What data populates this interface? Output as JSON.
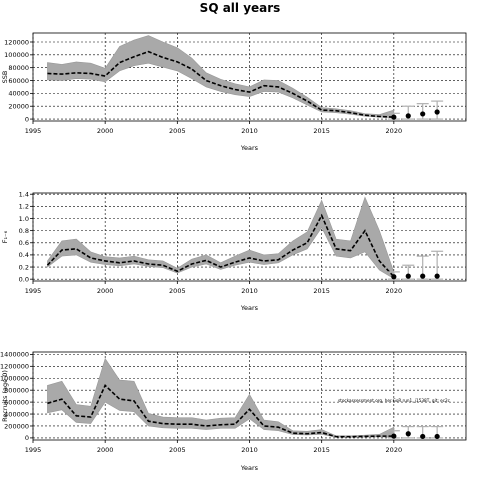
{
  "title": "SQ all years",
  "chart_data": [
    {
      "type": "line",
      "ylabel": "SSB",
      "xlabel": "Years",
      "xlim": [
        1995,
        2025
      ],
      "ylim": [
        -3000,
        134000
      ],
      "xticks": [
        1995,
        2000,
        2005,
        2010,
        2015,
        2020
      ],
      "yticks": [
        0,
        20000,
        40000,
        60000,
        80000,
        100000,
        120000
      ],
      "ytick_labels": [
        "0",
        "20000",
        "40000",
        "60000",
        "80000",
        "100000",
        "120000"
      ],
      "grid": true,
      "annotation": "",
      "x": [
        1996,
        1997,
        1998,
        1999,
        2000,
        2001,
        2002,
        2003,
        2004,
        2005,
        2006,
        2007,
        2008,
        2009,
        2010,
        2011,
        2012,
        2013,
        2014,
        2015,
        2016,
        2017,
        2018,
        2019,
        2020
      ],
      "estimate": [
        71000,
        70000,
        72000,
        71000,
        67000,
        88000,
        97000,
        105000,
        96000,
        89000,
        78000,
        60000,
        52000,
        46000,
        42000,
        52000,
        50000,
        40000,
        28000,
        14000,
        13000,
        10000,
        6000,
        4000,
        3000
      ],
      "lower": [
        61000,
        60000,
        63000,
        62000,
        58000,
        75000,
        83000,
        87000,
        81000,
        75000,
        63000,
        50000,
        43000,
        38000,
        35000,
        43000,
        42000,
        33000,
        22000,
        11000,
        10000,
        7500,
        4500,
        3000,
        2000
      ],
      "upper": [
        88000,
        85000,
        89000,
        87000,
        79000,
        113000,
        123000,
        130000,
        120000,
        111000,
        95000,
        72000,
        62000,
        55000,
        50000,
        61000,
        60000,
        48000,
        34000,
        18000,
        16000,
        13000,
        8500,
        7000,
        14000
      ],
      "forecast": [
        {
          "x": 2020,
          "value": 3000,
          "low": 0,
          "high": 9000
        },
        {
          "x": 2021,
          "value": 5000,
          "low": 0,
          "high": 20000
        },
        {
          "x": 2022,
          "value": 8000,
          "low": 0,
          "high": 24000
        },
        {
          "x": 2023,
          "value": 11000,
          "low": 0,
          "high": 28000
        }
      ]
    },
    {
      "type": "line",
      "ylabel": "F₁₋₆",
      "xlabel": "Years",
      "xlim": [
        1995,
        2025
      ],
      "ylim": [
        -0.03,
        1.42
      ],
      "xticks": [
        1995,
        2000,
        2005,
        2010,
        2015,
        2020
      ],
      "yticks": [
        0,
        0.2,
        0.4,
        0.6,
        0.8,
        1.0,
        1.2,
        1.4
      ],
      "ytick_labels": [
        "0.0",
        "0.2",
        "0.4",
        "0.6",
        "0.8",
        "1.0",
        "1.2",
        "1.4"
      ],
      "grid": true,
      "annotation": "",
      "x": [
        1996,
        1997,
        1998,
        1999,
        2000,
        2001,
        2002,
        2003,
        2004,
        2005,
        2006,
        2007,
        2008,
        2009,
        2010,
        2011,
        2012,
        2013,
        2014,
        2015,
        2016,
        2017,
        2018,
        2019,
        2020
      ],
      "estimate": [
        0.23,
        0.48,
        0.5,
        0.35,
        0.3,
        0.27,
        0.3,
        0.25,
        0.23,
        0.13,
        0.25,
        0.31,
        0.2,
        0.28,
        0.35,
        0.3,
        0.32,
        0.48,
        0.6,
        1.05,
        0.5,
        0.47,
        0.8,
        0.3,
        0.04
      ],
      "lower": [
        0.2,
        0.38,
        0.4,
        0.28,
        0.24,
        0.22,
        0.25,
        0.21,
        0.19,
        0.1,
        0.2,
        0.25,
        0.16,
        0.23,
        0.28,
        0.24,
        0.27,
        0.4,
        0.5,
        0.85,
        0.38,
        0.35,
        0.45,
        0.15,
        0.01
      ],
      "upper": [
        0.3,
        0.63,
        0.66,
        0.45,
        0.37,
        0.35,
        0.38,
        0.32,
        0.3,
        0.18,
        0.33,
        0.4,
        0.27,
        0.38,
        0.48,
        0.4,
        0.42,
        0.63,
        0.78,
        1.3,
        0.66,
        0.63,
        1.35,
        0.8,
        0.12
      ],
      "forecast": [
        {
          "x": 2020,
          "value": 0.04,
          "low": 0.0,
          "high": 0.12
        },
        {
          "x": 2021,
          "value": 0.05,
          "low": 0.0,
          "high": 0.23
        },
        {
          "x": 2022,
          "value": 0.05,
          "low": 0.0,
          "high": 0.38
        },
        {
          "x": 2023,
          "value": 0.05,
          "low": 0.0,
          "high": 0.46
        }
      ]
    },
    {
      "type": "line",
      "ylabel": "Recruits (age 0)",
      "xlabel": "Years",
      "xlim": [
        1995,
        2025
      ],
      "ylim": [
        -35000,
        1440000
      ],
      "xticks": [
        1995,
        2000,
        2005,
        2010,
        2015,
        2020
      ],
      "yticks": [
        0,
        200000,
        400000,
        600000,
        800000,
        1000000,
        1200000,
        1400000
      ],
      "ytick_labels": [
        "0",
        "200000",
        "400000",
        "600000",
        "800000",
        "1000000",
        "1200000",
        "1400000"
      ],
      "grid": true,
      "annotation": "stockassessment.org, her.GoR.run1, j1538T, git: ec2c",
      "x": [
        1996,
        1997,
        1998,
        1999,
        2000,
        2001,
        2002,
        2003,
        2004,
        2005,
        2006,
        2007,
        2008,
        2009,
        2010,
        2011,
        2012,
        2013,
        2014,
        2015,
        2016,
        2017,
        2018,
        2019,
        2020
      ],
      "estimate": [
        580000,
        650000,
        370000,
        350000,
        880000,
        650000,
        620000,
        280000,
        240000,
        230000,
        230000,
        200000,
        220000,
        230000,
        480000,
        200000,
        180000,
        80000,
        70000,
        90000,
        20000,
        20000,
        25000,
        30000,
        30000
      ],
      "lower": [
        420000,
        470000,
        260000,
        240000,
        600000,
        460000,
        440000,
        200000,
        170000,
        160000,
        160000,
        140000,
        160000,
        160000,
        320000,
        140000,
        120000,
        55000,
        50000,
        60000,
        12000,
        12000,
        15000,
        18000,
        10000
      ],
      "upper": [
        880000,
        950000,
        560000,
        530000,
        1330000,
        970000,
        950000,
        410000,
        350000,
        340000,
        340000,
        300000,
        330000,
        340000,
        730000,
        300000,
        270000,
        120000,
        110000,
        140000,
        35000,
        35000,
        45000,
        60000,
        180000
      ],
      "forecast": [
        {
          "x": 2020,
          "value": 30000,
          "low": 0,
          "high": 120000
        },
        {
          "x": 2021,
          "value": 70000,
          "low": 0,
          "high": 190000
        },
        {
          "x": 2022,
          "value": 25000,
          "low": 0,
          "high": 190000
        },
        {
          "x": 2023,
          "value": 25000,
          "low": 0,
          "high": 190000
        }
      ]
    }
  ]
}
